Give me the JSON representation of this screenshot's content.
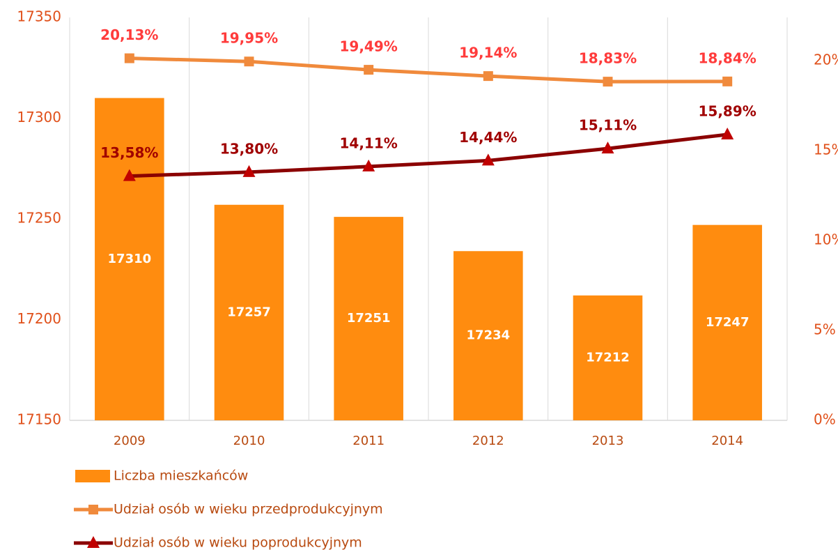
{
  "chart_data": {
    "type": "bar",
    "categories": [
      "2009",
      "2010",
      "2011",
      "2012",
      "2013",
      "2014"
    ],
    "series": [
      {
        "name": "Liczba mieszkańców",
        "type": "bar",
        "color": "#ff8c0f",
        "values": [
          17310,
          17257,
          17251,
          17234,
          17212,
          17247
        ]
      },
      {
        "name": "Udział osób w wieku przedprodukcyjnym",
        "type": "line",
        "axis": "y2",
        "marker": "square",
        "color": "#f08a3c",
        "label_color": "#ff3b3b",
        "values": [
          20.13,
          19.95,
          19.49,
          19.14,
          18.83,
          18.84
        ],
        "value_labels": [
          "20,13%",
          "19,95%",
          "19,49%",
          "19,14%",
          "18,83%",
          "18,84%"
        ]
      },
      {
        "name": "Udział osób w wieku poprodukcyjnym",
        "type": "line",
        "axis": "y2",
        "marker": "triangle",
        "color": "#8b0000",
        "marker_color": "#c00000",
        "label_color": "#a00000",
        "values": [
          13.58,
          13.8,
          14.11,
          14.44,
          15.11,
          15.89
        ],
        "value_labels": [
          "13,58%",
          "13,80%",
          "14,11%",
          "14,44%",
          "15,11%",
          "15,89%"
        ]
      }
    ],
    "ylim": [
      17150,
      17350
    ],
    "yticks": [
      17150,
      17200,
      17250,
      17300,
      17350
    ],
    "y2lim": [
      0,
      22.4
    ],
    "y2ticks": [
      {
        "value": 0,
        "label": "0%"
      },
      {
        "value": 5,
        "label": "5%"
      },
      {
        "value": 10,
        "label": "10%"
      },
      {
        "value": 15,
        "label": "15%"
      },
      {
        "value": 20,
        "label": "20%"
      }
    ],
    "grid": true,
    "legend": "bottom"
  }
}
